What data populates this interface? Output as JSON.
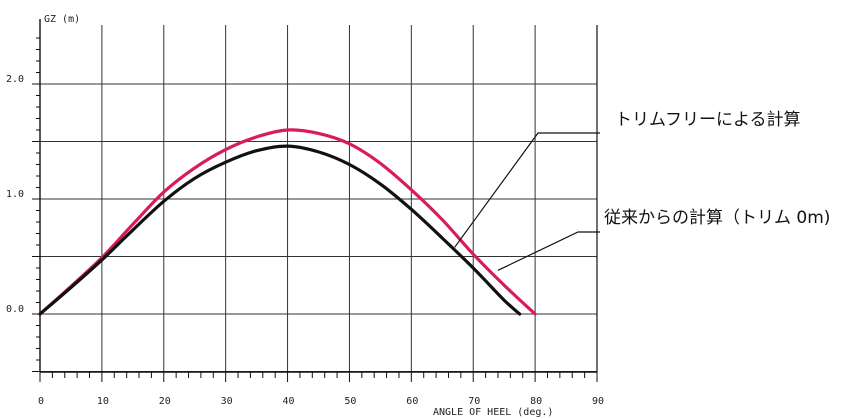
{
  "chart_data": {
    "type": "line",
    "title": "",
    "xlabel": "ANGLE OF HEEL (deg.)",
    "ylabel": "GZ (m)",
    "xlim": [
      0,
      90
    ],
    "ylim": [
      -1.0,
      2.5
    ],
    "grid": true,
    "x_ticks": [
      "0",
      "10",
      "20",
      "30",
      "40",
      "50",
      "60",
      "70",
      "80",
      "90"
    ],
    "y_ticks": [
      {
        "value": 0.0,
        "label": "0.0"
      },
      {
        "value": 1.0,
        "label": "1.0"
      },
      {
        "value": 2.0,
        "label": "2.0"
      }
    ],
    "series": [
      {
        "color": "#d81b60",
        "x": [
          0,
          5,
          10,
          15,
          20,
          25,
          30,
          35,
          40,
          45,
          50,
          55,
          60,
          65,
          70,
          75,
          80
        ],
        "y": [
          0.0,
          0.24,
          0.49,
          0.78,
          1.06,
          1.27,
          1.43,
          1.54,
          1.6,
          1.57,
          1.48,
          1.31,
          1.08,
          0.82,
          0.52,
          0.25,
          0.0
        ]
      },
      {
        "color": "#111111",
        "x": [
          0,
          5,
          10,
          15,
          20,
          25,
          30,
          35,
          40,
          45,
          50,
          55,
          60,
          65,
          70,
          75,
          77.5
        ],
        "y": [
          0.0,
          0.23,
          0.47,
          0.73,
          0.98,
          1.18,
          1.32,
          1.42,
          1.46,
          1.41,
          1.3,
          1.13,
          0.91,
          0.66,
          0.4,
          0.12,
          0.0
        ]
      }
    ],
    "annotations": [
      {
        "text": "トリムフリーによる計算",
        "series_index": 0,
        "target": [
          67,
          0.58
        ]
      },
      {
        "text": "従来からの計算（トリム 0m)",
        "series_index": 1,
        "target": [
          74,
          0.38
        ]
      }
    ]
  }
}
